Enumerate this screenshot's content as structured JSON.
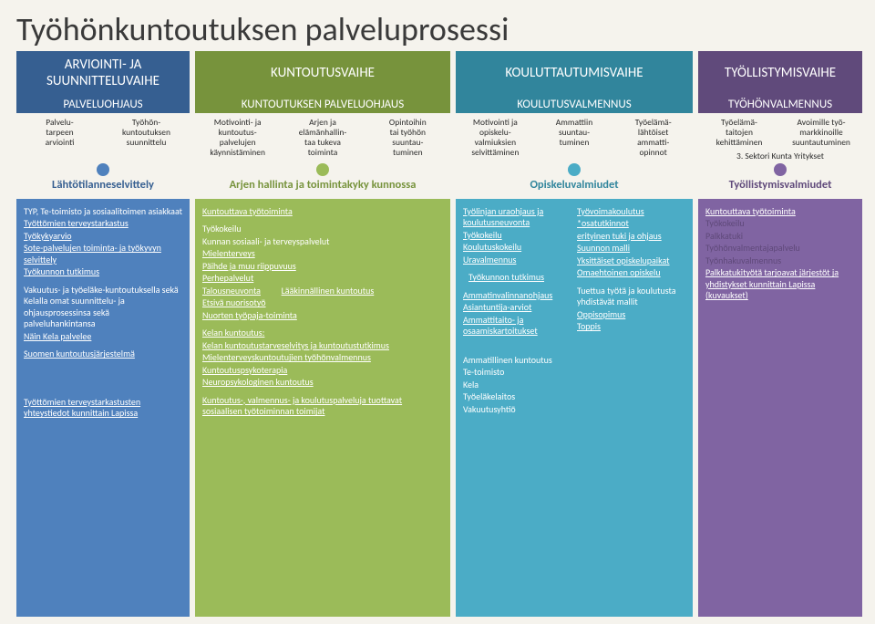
{
  "title": "Työhönkuntoutuksen palveluprosessi",
  "colors": {
    "phase1_bg": "#365f91",
    "phase2_bg": "#77933c",
    "phase3_bg": "#31859c",
    "phase4_bg": "#604a7b",
    "phase1_panel": "#4f81bd",
    "phase2_panel": "#9bbb59",
    "phase3_panel": "#4bacc6",
    "phase4_panel": "#8064a2",
    "dot1": "#4f81bd",
    "dot2": "#9bbb59",
    "dot3": "#4bacc6",
    "dot4": "#8064a2",
    "muted_purple_text": "#5f497a"
  },
  "phases": [
    {
      "top": "ARVIOINTI- JA SUUNNITTELUVAIHE",
      "sub": "PALVELUOHJAUS"
    },
    {
      "top": "KUNTOUTUSVAIHE",
      "sub": "KUNTOUTUKSEN PALVELUOHJAUS"
    },
    {
      "top": "KOULUTTAUTUMISVAIHE",
      "sub": "KOULUTUSVALMENNUS"
    },
    {
      "top": "TYÖLLISTYMISVAIHE",
      "sub": "TYÖHÖNVALMENNUS"
    }
  ],
  "subitems": {
    "c1": [
      "Palvelu-\ntarpeen\narviointi",
      "Työhön-\nkuntoutuksen\nsuunnittelu"
    ],
    "c2": [
      "Motivointi- ja\nkuntoutus-\npalvelujen\nkäynnistäminen",
      "Arjen ja\nelämänhallin-\ntaa tukeva\ntoiminta",
      "Opintoihin\ntai työhön\nsuuntau-\ntuminen"
    ],
    "c3": [
      "Motivointi ja\nopiskelu-\nvalmiuksien\nselvittäminen",
      "Ammattiin\nsuuntau-\ntuminen",
      "Työelämä-\nlähtöiset\nammatti-\nopinnot"
    ],
    "c4": [
      "Työelämä-\ntaitojen\nkehittäminen",
      "Avoimille työ-\nmarkkinoille\nsuuntautuminen"
    ],
    "sector": "3. Sektori  Kunta  Yritykset"
  },
  "milestones": [
    "Lähtötilanneselvittely",
    "Arjen hallinta ja toimintakyky kunnossa",
    "Opiskeluvalmiudet",
    "Työllistymisvalmiudet"
  ],
  "panel1": {
    "intro": "TYP, Te-toimisto ja sosiaalitoimen asiakkaat",
    "links": [
      "Työttömien terveystarkastus",
      "Työkykyarvio",
      "Sote-palvelujen toiminta- ja työkyvyn selvittely",
      "Työkunnon tutkimus"
    ],
    "para": "Vakuutus- ja työeläke-kuntoutuksella sekä Kelalla omat suunnittelu- ja ohjausprosessinsa sekä palveluhankintansa",
    "kela": "Näin Kela  palvelee",
    "sys": "Suomen kuntoutusjärjestelmä",
    "bottom": "Työttömien terveystarkastusten yhteystiedot kunnittain Lapissa"
  },
  "panel2": {
    "h1": "Kuntouttava työtoiminta",
    "items1": [
      "Työkokeilu",
      "Kunnan sosiaali- ja terveyspalvelut",
      "Mielenterveys",
      "Päihde ja muu riippuvuus",
      "Perhepalvelut"
    ],
    "tal": "Talousneuvonta",
    "laak": "Lääkinnällinen kuntoutus",
    "items2": [
      "Etsivä nuorisotyö",
      "Nuorten työpaja-toiminta"
    ],
    "kelah": "Kelan kuntoutus:",
    "kela": [
      "Kelan kuntoutustarveselvitys ja kuntoutustutkimus",
      "Mielenterveyskuntoutujien työhönvalmennus",
      "Kuntoutuspsykoterapia",
      "Neuropsykologinen kuntoutus"
    ],
    "bottom": "Kuntoutus-, valmennus- ja koulutuspalveluja tuottavat sosiaalisen  työtoiminnan  toimijat"
  },
  "panel3": {
    "left": {
      "h1": "Työlinjan uraohjaus ja koulutusneuvonta",
      "l": [
        "Työkokeilu",
        "Koulutuskokeilu",
        "Uravalmennus"
      ],
      "tk": "Työkunnon tutkimus",
      "h2": "Ammatinvalinnanohjaus",
      "l2": [
        "Asiantuntija-arviot",
        "Ammattitaito- ja osaamiskartoitukset"
      ],
      "h3": "Ammatillinen kuntoutus",
      "who": [
        "Te-toimisto",
        "Kela",
        "Työeläkelaitos",
        "Vakuutusyhtiö"
      ]
    },
    "right": {
      "h1": "Työvoimakoulutus",
      "l": [
        "*osatutkinnot",
        "erityinen tuki ja ohjaus",
        "Suunnon malli",
        "Yksittäiset opiskelupaikat",
        "Omaehtoinen opiskelu"
      ],
      "para": "Tuettua työtä ja koulutusta yhdistävät mallit",
      "l2": [
        "Oppisopimus",
        "Toppis"
      ]
    }
  },
  "panel4": {
    "items": [
      "Kuntouttava työtoiminta",
      "Työkokeilu",
      "Palkkatuki",
      "Työhönvalmentajapalvelu",
      "Työnhakuvalmennus"
    ],
    "bottom": "Palkkatukityötä tarjoavat järjestöt ja yhdistykset kunnittain Lapissa (kuvaukset)"
  }
}
